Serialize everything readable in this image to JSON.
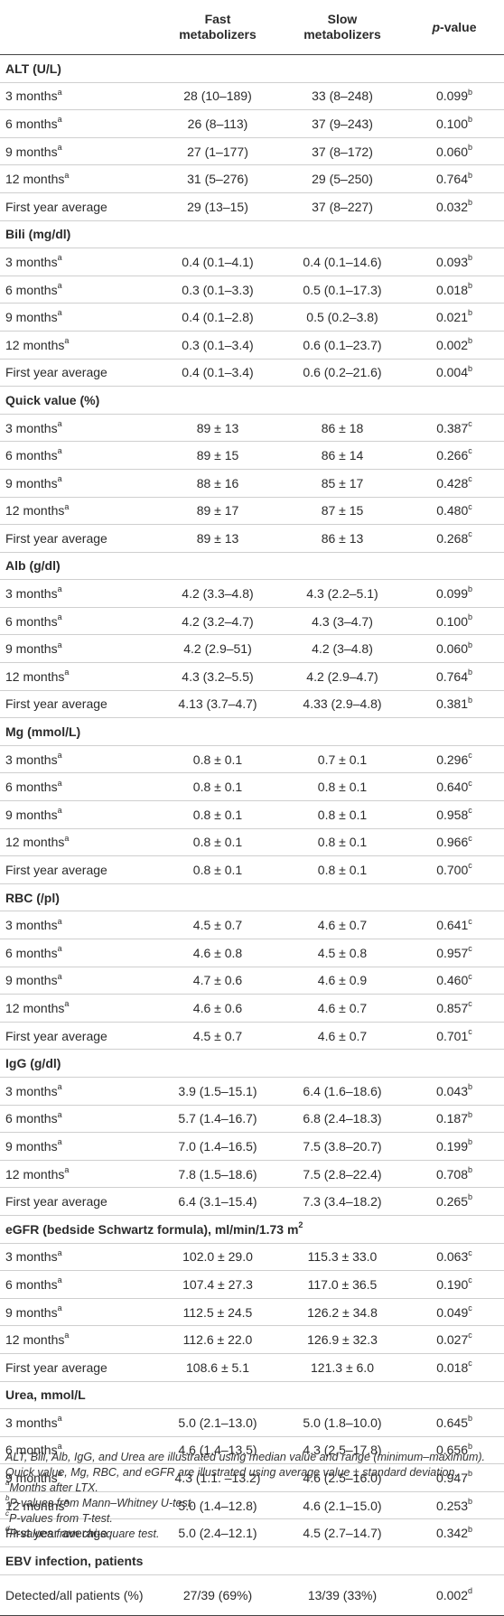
{
  "header": {
    "col1_line1": "Fast",
    "col1_line2": "metabolizers",
    "col2_line1": "Slow",
    "col2_line2": "metabolizers",
    "col3_italic": "p",
    "col3_rest": "-value"
  },
  "sections": [
    {
      "title": "ALT (U/L)",
      "rows": [
        {
          "label": "3 months",
          "label_sup": "a",
          "fast": "28 (10–189)",
          "slow": "33 (8–248)",
          "p": "0.099",
          "p_sup": "b"
        },
        {
          "label": "6 months",
          "label_sup": "a",
          "fast": "26 (8–113)",
          "slow": "37 (9–243)",
          "p": "0.100",
          "p_sup": "b"
        },
        {
          "label": "9 months",
          "label_sup": "a",
          "fast": "27 (1–177)",
          "slow": "37 (8–172)",
          "p": "0.060",
          "p_sup": "b"
        },
        {
          "label": "12 months",
          "label_sup": "a",
          "fast": "31 (5–276)",
          "slow": "29 (5–250)",
          "p": "0.764",
          "p_sup": "b"
        },
        {
          "label": "First year average",
          "label_sup": "",
          "fast": "29 (13–15)",
          "slow": "37 (8–227)",
          "p": "0.032",
          "p_sup": "b"
        }
      ]
    },
    {
      "title": "Bili (mg/dl)",
      "rows": [
        {
          "label": "3 months",
          "label_sup": "a",
          "fast": "0.4 (0.1–4.1)",
          "slow": "0.4 (0.1–14.6)",
          "p": "0.093",
          "p_sup": "b"
        },
        {
          "label": "6 months",
          "label_sup": "a",
          "fast": "0.3 (0.1–3.3)",
          "slow": "0.5 (0.1–17.3)",
          "p": "0.018",
          "p_sup": "b"
        },
        {
          "label": "9 months",
          "label_sup": "a",
          "fast": "0.4 (0.1–2.8)",
          "slow": "0.5 (0.2–3.8)",
          "p": "0.021",
          "p_sup": "b"
        },
        {
          "label": "12 months",
          "label_sup": "a",
          "fast": "0.3 (0.1–3.4)",
          "slow": "0.6 (0.1–23.7)",
          "p": "0.002",
          "p_sup": "b"
        },
        {
          "label": "First year average",
          "label_sup": "",
          "fast": "0.4 (0.1–3.4)",
          "slow": "0.6 (0.2–21.6)",
          "p": "0.004",
          "p_sup": "b"
        }
      ]
    },
    {
      "title": "Quick value (%)",
      "rows": [
        {
          "label": "3 months",
          "label_sup": "a",
          "fast": "89 ± 13",
          "slow": "86 ± 18",
          "p": "0.387",
          "p_sup": "c"
        },
        {
          "label": "6 months",
          "label_sup": "a",
          "fast": "89 ± 15",
          "slow": "86 ± 14",
          "p": "0.266",
          "p_sup": "c"
        },
        {
          "label": "9 months",
          "label_sup": "a",
          "fast": "88 ± 16",
          "slow": "85 ± 17",
          "p": "0.428",
          "p_sup": "c"
        },
        {
          "label": "12 months",
          "label_sup": "a",
          "fast": "89 ± 17",
          "slow": "87 ± 15",
          "p": "0.480",
          "p_sup": "c"
        },
        {
          "label": "First year average",
          "label_sup": "",
          "fast": "89 ± 13",
          "slow": "86 ± 13",
          "p": "0.268",
          "p_sup": "c"
        }
      ]
    },
    {
      "title": "Alb (g/dl)",
      "rows": [
        {
          "label": "3 months",
          "label_sup": "a",
          "fast": "4.2 (3.3–4.8)",
          "slow": "4.3 (2.2–5.1)",
          "p": "0.099",
          "p_sup": "b"
        },
        {
          "label": "6 months",
          "label_sup": "a",
          "fast": "4.2 (3.2–4.7)",
          "slow": "4.3 (3–4.7)",
          "p": "0.100",
          "p_sup": "b"
        },
        {
          "label": "9 months",
          "label_sup": "a",
          "fast": "4.2 (2.9–51)",
          "slow": "4.2 (3–4.8)",
          "p": "0.060",
          "p_sup": "b"
        },
        {
          "label": "12 months",
          "label_sup": "a",
          "fast": "4.3 (3.2–5.5)",
          "slow": "4.2 (2.9–4.7)",
          "p": "0.764",
          "p_sup": "b"
        },
        {
          "label": "First year average",
          "label_sup": "",
          "fast": "4.13 (3.7–4.7)",
          "slow": "4.33 (2.9–4.8)",
          "p": "0.381",
          "p_sup": "b"
        }
      ]
    },
    {
      "title": "Mg (mmol/L)",
      "rows": [
        {
          "label": "3 months",
          "label_sup": "a",
          "fast": "0.8 ± 0.1",
          "slow": "0.7 ± 0.1",
          "p": "0.296",
          "p_sup": "c"
        },
        {
          "label": "6 months",
          "label_sup": "a",
          "fast": "0.8 ± 0.1",
          "slow": "0.8 ± 0.1",
          "p": "0.640",
          "p_sup": "c"
        },
        {
          "label": "9 months",
          "label_sup": "a",
          "fast": "0.8 ± 0.1",
          "slow": "0.8 ± 0.1",
          "p": "0.958",
          "p_sup": "c"
        },
        {
          "label": "12 months",
          "label_sup": "a",
          "fast": "0.8 ± 0.1",
          "slow": "0.8 ± 0.1",
          "p": "0.966",
          "p_sup": "c"
        },
        {
          "label": "First year average",
          "label_sup": "",
          "fast": "0.8 ± 0.1",
          "slow": "0.8 ± 0.1",
          "p": "0.700",
          "p_sup": "c"
        }
      ]
    },
    {
      "title": "RBC (/pl)",
      "rows": [
        {
          "label": "3 months",
          "label_sup": "a",
          "fast": "4.5 ± 0.7",
          "slow": "4.6 ± 0.7",
          "p": "0.641",
          "p_sup": "c"
        },
        {
          "label": "6 months",
          "label_sup": "a",
          "fast": "4.6 ± 0.8",
          "slow": "4.5 ± 0.8",
          "p": "0.957",
          "p_sup": "c"
        },
        {
          "label": "9 months",
          "label_sup": "a",
          "fast": "4.7 ± 0.6",
          "slow": "4.6 ± 0.9",
          "p": "0.460",
          "p_sup": "c"
        },
        {
          "label": "12 months",
          "label_sup": "a",
          "fast": "4.6 ± 0.6",
          "slow": "4.6 ± 0.7",
          "p": "0.857",
          "p_sup": "c"
        },
        {
          "label": "First year average",
          "label_sup": "",
          "fast": "4.5 ± 0.7",
          "slow": "4.6 ± 0.7",
          "p": "0.701",
          "p_sup": "c"
        }
      ]
    },
    {
      "title": "IgG (g/dl)",
      "rows": [
        {
          "label": "3 months",
          "label_sup": "a",
          "fast": "3.9 (1.5–15.1)",
          "slow": "6.4 (1.6–18.6)",
          "p": "0.043",
          "p_sup": "b"
        },
        {
          "label": "6 months",
          "label_sup": "a",
          "fast": "5.7 (1.4–16.7)",
          "slow": "6.8 (2.4–18.3)",
          "p": "0.187",
          "p_sup": "b"
        },
        {
          "label": "9 months",
          "label_sup": "a",
          "fast": "7.0 (1.4–16.5)",
          "slow": "7.5 (3.8–20.7)",
          "p": "0.199",
          "p_sup": "b"
        },
        {
          "label": "12 months",
          "label_sup": "a",
          "fast": "7.8 (1.5–18.6)",
          "slow": "7.5 (2.8–22.4)",
          "p": "0.708",
          "p_sup": "b"
        },
        {
          "label": "First year average",
          "label_sup": "",
          "fast": "6.4 (3.1–15.4)",
          "slow": "7.3 (3.4–18.2)",
          "p": "0.265",
          "p_sup": "b"
        }
      ]
    },
    {
      "title": "eGFR (bedside Schwartz formula), ml/min/1.73 m",
      "title_sup": "2",
      "rows": [
        {
          "label": "3 months",
          "label_sup": "a",
          "fast": "102.0 ± 29.0",
          "slow": "115.3 ± 33.0",
          "p": "0.063",
          "p_sup": "c"
        },
        {
          "label": "6 months",
          "label_sup": "a",
          "fast": "107.4 ± 27.3",
          "slow": "117.0 ± 36.5",
          "p": "0.190",
          "p_sup": "c"
        },
        {
          "label": "9 months",
          "label_sup": "a",
          "fast": "112.5 ± 24.5",
          "slow": "126.2 ± 34.8",
          "p": "0.049",
          "p_sup": "c"
        },
        {
          "label": "12 months",
          "label_sup": "a",
          "fast": "112.6 ± 22.0",
          "slow": "126.9 ± 32.3",
          "p": "0.027",
          "p_sup": "c"
        },
        {
          "label": "First year average",
          "label_sup": "",
          "fast": "108.6 ± 5.1",
          "slow": "121.3 ± 6.0",
          "p": "0.018",
          "p_sup": "c"
        }
      ]
    },
    {
      "title": "Urea, mmol/L",
      "rows": [
        {
          "label": "3 months",
          "label_sup": "a",
          "fast": "5.0 (2.1–13.0)",
          "slow": "5.0 (1.8–10.0)",
          "p": "0.645",
          "p_sup": "b"
        },
        {
          "label": "6 months",
          "label_sup": "a",
          "fast": "4.6 (1.4–13.5)",
          "slow": "4.3 (2.5–17.8)",
          "p": "0.656",
          "p_sup": "b"
        },
        {
          "label": "9 months",
          "label_sup": "a",
          "fast": "4.3 (1.1. –13.2)",
          "slow": "4.6 (2.5–16.0)",
          "p": "0.947",
          "p_sup": "b"
        },
        {
          "label": "12 months",
          "label_sup": "a",
          "fast": "5.0 (1.4–12.8)",
          "slow": "4.6 (2.1–15.0)",
          "p": "0.253",
          "p_sup": "b"
        },
        {
          "label": "First year average",
          "label_sup": "",
          "fast": "5.0 (2.4–12.1)",
          "slow": "4.5 (2.7–14.7)",
          "p": "0.342",
          "p_sup": "b"
        }
      ]
    },
    {
      "title": "EBV infection, patients",
      "rows": [
        {
          "label": "Detected/all patients (%)",
          "label_sup": "",
          "fast": "27/39 (69%)",
          "slow": "13/39 (33%)",
          "p": "0.002",
          "p_sup": "d",
          "twoline": true
        }
      ]
    }
  ],
  "notes": {
    "main": "ALT, Bili, Alb, IgG, and Urea are illustrated using median value and range (minimum–maximum). Quick value, Mg, RBC, and eGFR are illustrated using average value ± standard deviation.",
    "a_sup": "a",
    "a_text": "Months after LTX.",
    "b_sup": "b",
    "b_text": "P-values from Mann–Whitney U-test.",
    "c_sup": "c",
    "c_text": "P-values from T-test.",
    "d_sup": "d",
    "d_text": "P-values from chi-square test."
  }
}
